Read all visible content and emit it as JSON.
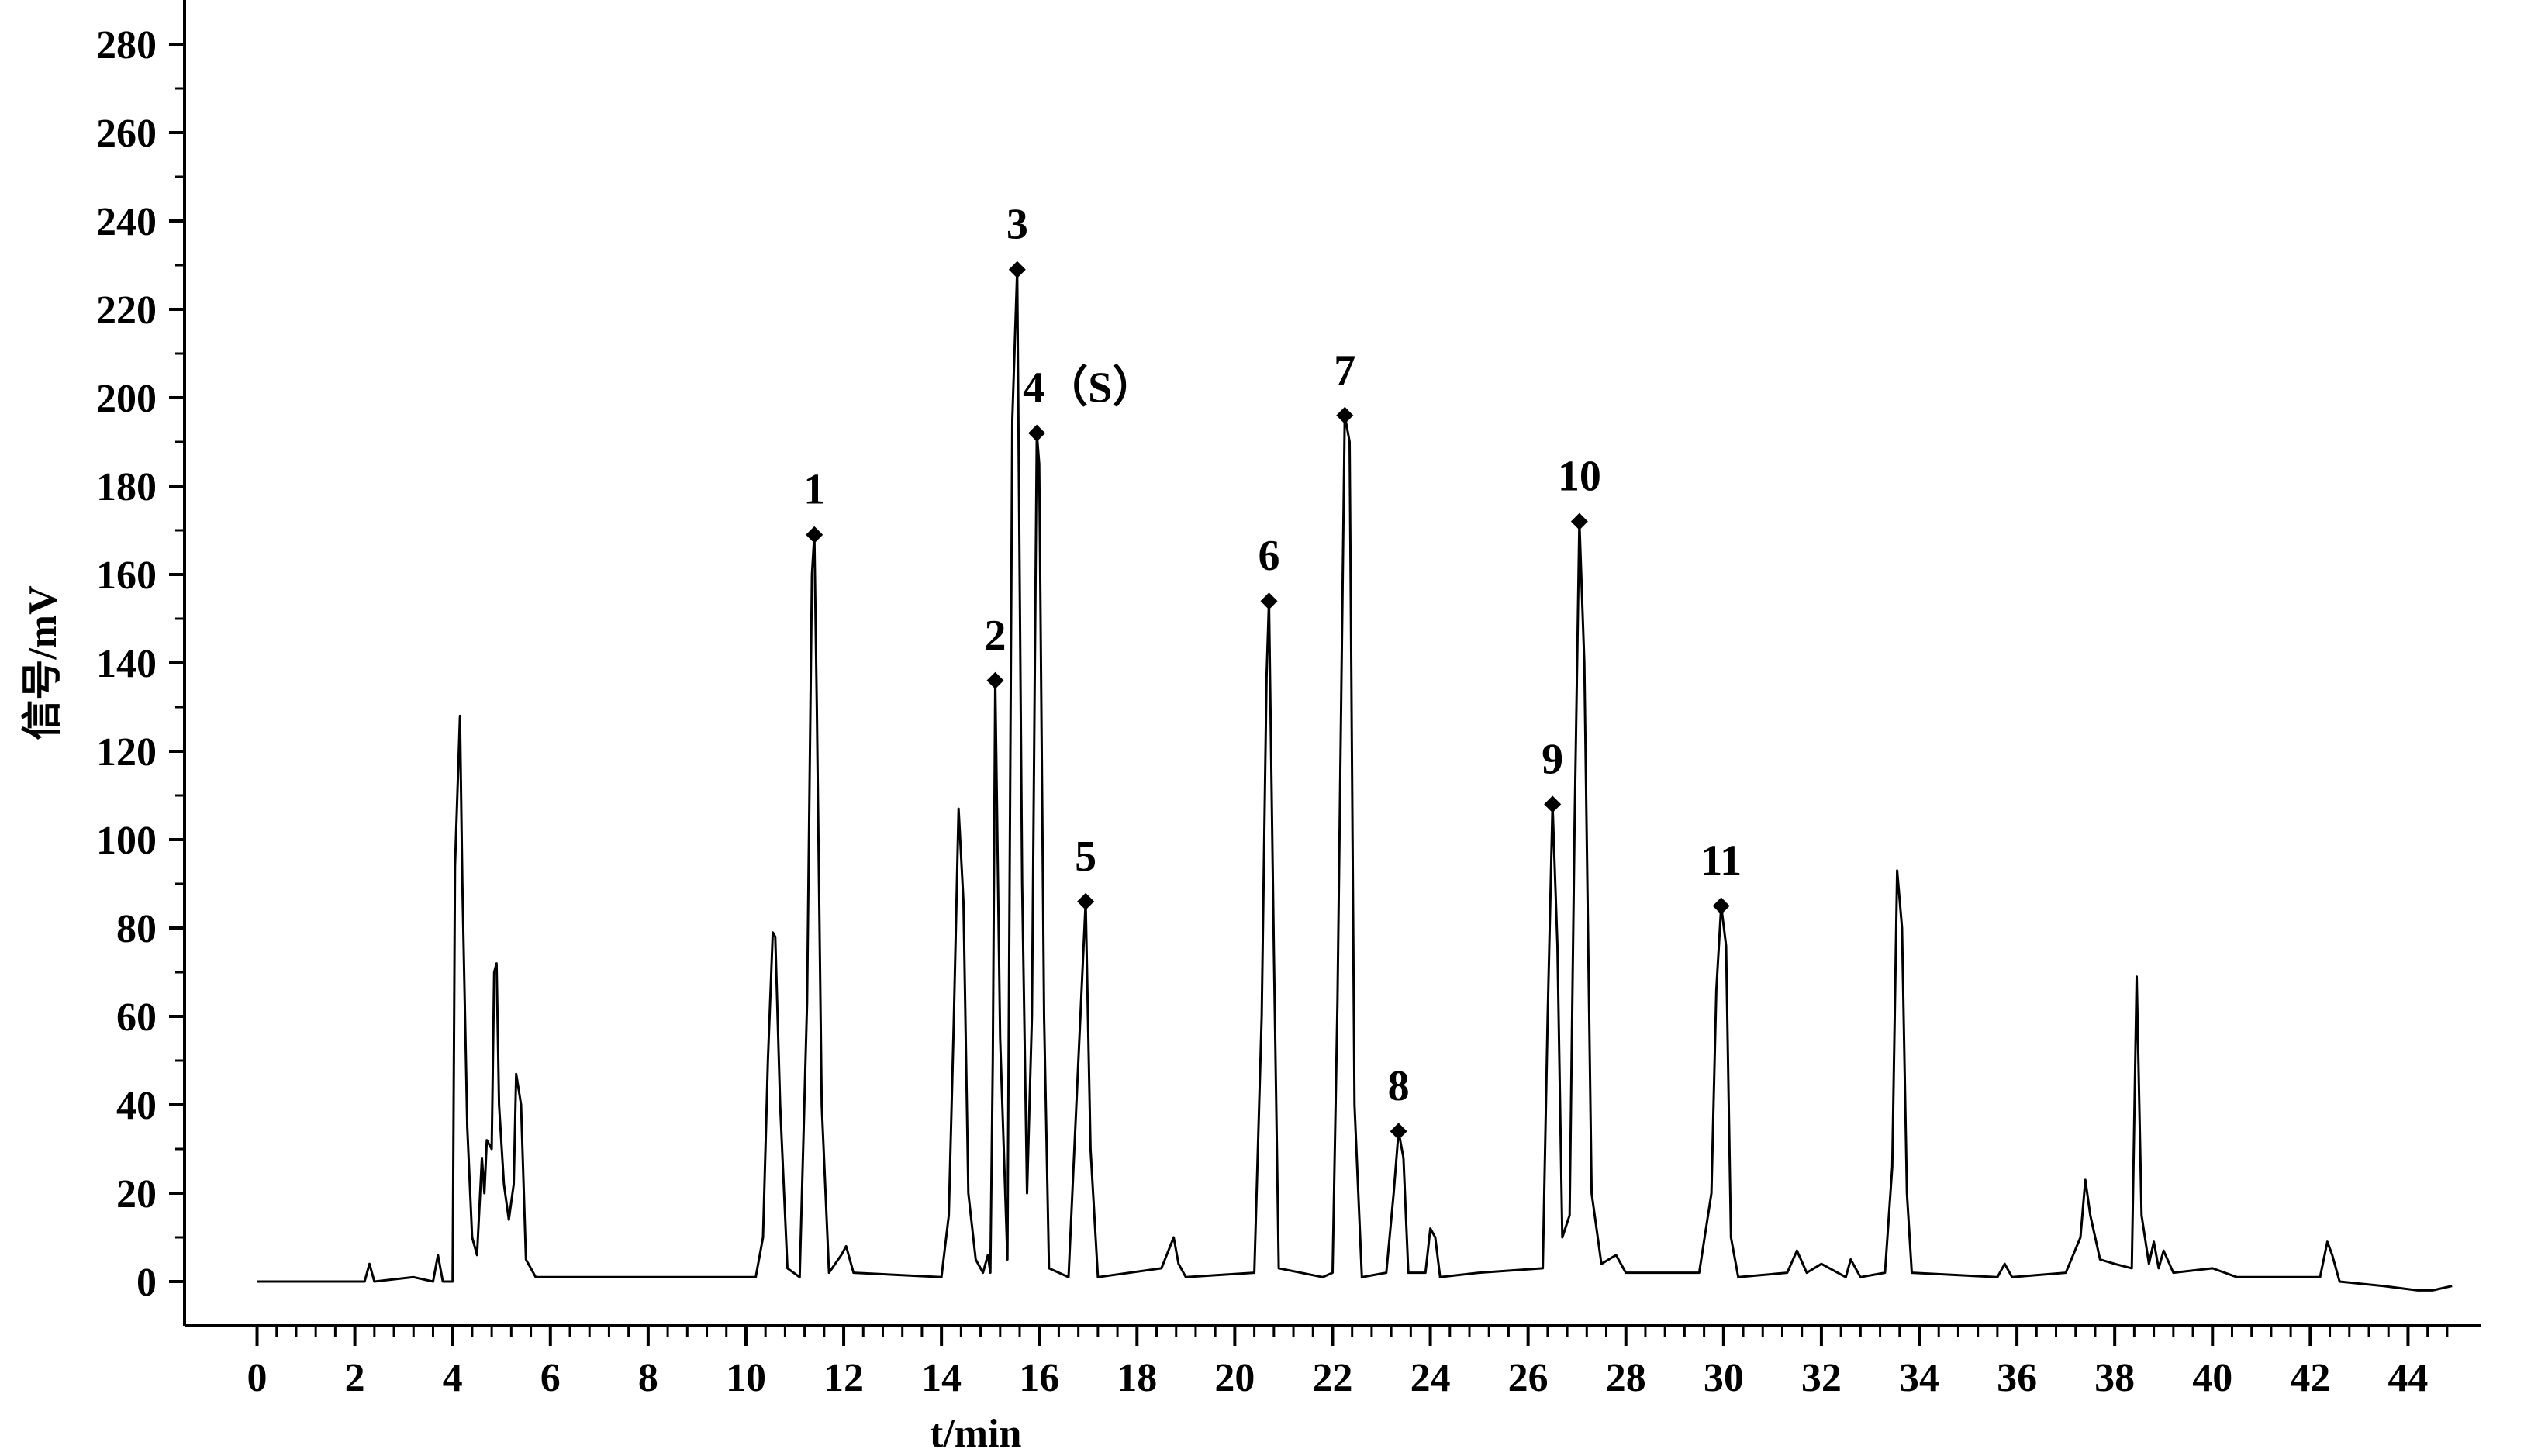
{
  "chart_data": {
    "type": "line",
    "title": "",
    "xlabel": "t/min",
    "ylabel": "信号/mV",
    "xlim": [
      -0.5,
      45.5
    ],
    "ylim": [
      -10,
      290
    ],
    "x_ticks": [
      0,
      2,
      4,
      6,
      8,
      10,
      12,
      14,
      16,
      18,
      20,
      22,
      24,
      26,
      28,
      30,
      32,
      34,
      36,
      38,
      40,
      42,
      44
    ],
    "y_ticks": [
      0,
      20,
      40,
      60,
      80,
      100,
      120,
      140,
      160,
      180,
      200,
      220,
      240,
      260,
      280
    ],
    "grid": false,
    "legend": "none",
    "peaks": [
      {
        "label": "1",
        "x": 11.4,
        "y": 169
      },
      {
        "label": "2",
        "x": 15.1,
        "y": 136
      },
      {
        "label": "3",
        "x": 15.55,
        "y": 229
      },
      {
        "label": "4（S）",
        "x": 15.95,
        "y": 192
      },
      {
        "label": "5",
        "x": 16.95,
        "y": 86
      },
      {
        "label": "6",
        "x": 20.7,
        "y": 154
      },
      {
        "label": "7",
        "x": 22.25,
        "y": 196
      },
      {
        "label": "8",
        "x": 23.35,
        "y": 34
      },
      {
        "label": "9",
        "x": 26.5,
        "y": 108
      },
      {
        "label": "10",
        "x": 27.05,
        "y": 172
      },
      {
        "label": "11",
        "x": 29.95,
        "y": 85
      }
    ],
    "series": [
      {
        "color": "#000000",
        "points": [
          [
            0.0,
            0
          ],
          [
            2.2,
            0
          ],
          [
            2.3,
            4
          ],
          [
            2.4,
            0
          ],
          [
            3.2,
            1
          ],
          [
            3.6,
            0
          ],
          [
            3.7,
            6
          ],
          [
            3.8,
            0
          ],
          [
            4.0,
            0
          ],
          [
            4.05,
            94
          ],
          [
            4.15,
            128
          ],
          [
            4.2,
            90
          ],
          [
            4.3,
            35
          ],
          [
            4.4,
            10
          ],
          [
            4.5,
            6
          ],
          [
            4.6,
            28
          ],
          [
            4.65,
            20
          ],
          [
            4.7,
            32
          ],
          [
            4.8,
            30
          ],
          [
            4.85,
            70
          ],
          [
            4.9,
            72
          ],
          [
            4.95,
            40
          ],
          [
            5.05,
            22
          ],
          [
            5.15,
            14
          ],
          [
            5.25,
            22
          ],
          [
            5.3,
            47
          ],
          [
            5.4,
            40
          ],
          [
            5.5,
            5
          ],
          [
            5.7,
            1
          ],
          [
            7.2,
            1
          ],
          [
            7.3,
            1
          ],
          [
            10.2,
            1
          ],
          [
            10.35,
            10
          ],
          [
            10.45,
            50
          ],
          [
            10.55,
            79
          ],
          [
            10.6,
            78
          ],
          [
            10.7,
            40
          ],
          [
            10.85,
            3
          ],
          [
            11.1,
            1
          ],
          [
            11.25,
            63
          ],
          [
            11.35,
            160
          ],
          [
            11.4,
            169
          ],
          [
            11.45,
            130
          ],
          [
            11.55,
            40
          ],
          [
            11.7,
            2
          ],
          [
            11.95,
            6
          ],
          [
            12.05,
            8
          ],
          [
            12.2,
            2
          ],
          [
            14.0,
            1
          ],
          [
            14.15,
            15
          ],
          [
            14.25,
            58
          ],
          [
            14.35,
            107
          ],
          [
            14.45,
            86
          ],
          [
            14.55,
            20
          ],
          [
            14.7,
            5
          ],
          [
            14.85,
            2
          ],
          [
            14.95,
            6
          ],
          [
            15.0,
            2
          ],
          [
            15.05,
            50
          ],
          [
            15.1,
            136
          ],
          [
            15.2,
            55
          ],
          [
            15.35,
            5
          ],
          [
            15.45,
            195
          ],
          [
            15.55,
            229
          ],
          [
            15.65,
            90
          ],
          [
            15.75,
            20
          ],
          [
            15.85,
            60
          ],
          [
            15.95,
            192
          ],
          [
            16.0,
            185
          ],
          [
            16.1,
            60
          ],
          [
            16.2,
            3
          ],
          [
            16.6,
            1
          ],
          [
            16.8,
            50
          ],
          [
            16.95,
            86
          ],
          [
            17.05,
            30
          ],
          [
            17.2,
            1
          ],
          [
            18.5,
            3
          ],
          [
            18.75,
            10
          ],
          [
            18.85,
            4
          ],
          [
            19.0,
            1
          ],
          [
            20.4,
            2
          ],
          [
            20.55,
            60
          ],
          [
            20.65,
            137
          ],
          [
            20.7,
            154
          ],
          [
            20.8,
            75
          ],
          [
            20.9,
            3
          ],
          [
            21.8,
            1
          ],
          [
            22.0,
            2
          ],
          [
            22.1,
            63
          ],
          [
            22.25,
            196
          ],
          [
            22.35,
            190
          ],
          [
            22.45,
            40
          ],
          [
            22.6,
            1
          ],
          [
            23.1,
            2
          ],
          [
            23.25,
            20
          ],
          [
            23.35,
            34
          ],
          [
            23.45,
            28
          ],
          [
            23.55,
            2
          ],
          [
            23.9,
            2
          ],
          [
            24.0,
            12
          ],
          [
            24.1,
            10
          ],
          [
            24.2,
            1
          ],
          [
            25.0,
            2
          ],
          [
            26.3,
            3
          ],
          [
            26.4,
            60
          ],
          [
            26.5,
            108
          ],
          [
            26.6,
            76
          ],
          [
            26.7,
            10
          ],
          [
            26.85,
            15
          ],
          [
            26.95,
            102
          ],
          [
            27.05,
            172
          ],
          [
            27.15,
            140
          ],
          [
            27.3,
            20
          ],
          [
            27.5,
            4
          ],
          [
            27.8,
            6
          ],
          [
            28.0,
            2
          ],
          [
            29.5,
            2
          ],
          [
            29.75,
            20
          ],
          [
            29.85,
            66
          ],
          [
            29.95,
            85
          ],
          [
            30.05,
            76
          ],
          [
            30.15,
            10
          ],
          [
            30.3,
            1
          ],
          [
            31.3,
            2
          ],
          [
            31.5,
            7
          ],
          [
            31.7,
            2
          ],
          [
            32.0,
            4
          ],
          [
            32.5,
            1
          ],
          [
            32.6,
            5
          ],
          [
            32.8,
            1
          ],
          [
            33.3,
            2
          ],
          [
            33.45,
            26
          ],
          [
            33.55,
            93
          ],
          [
            33.65,
            80
          ],
          [
            33.75,
            20
          ],
          [
            33.85,
            2
          ],
          [
            35.6,
            1
          ],
          [
            35.75,
            4
          ],
          [
            35.9,
            1
          ],
          [
            37.0,
            2
          ],
          [
            37.3,
            10
          ],
          [
            37.4,
            23
          ],
          [
            37.5,
            15
          ],
          [
            37.7,
            5
          ],
          [
            38.0,
            4
          ],
          [
            38.35,
            3
          ],
          [
            38.45,
            69
          ],
          [
            38.55,
            15
          ],
          [
            38.7,
            4
          ],
          [
            38.8,
            9
          ],
          [
            38.9,
            3
          ],
          [
            39.0,
            7
          ],
          [
            39.2,
            2
          ],
          [
            40.0,
            3
          ],
          [
            40.5,
            1
          ],
          [
            42.2,
            1
          ],
          [
            42.35,
            9
          ],
          [
            42.45,
            6
          ],
          [
            42.6,
            0
          ],
          [
            43.5,
            -1
          ],
          [
            44.2,
            -2
          ],
          [
            44.5,
            -2
          ],
          [
            44.9,
            -1
          ]
        ]
      }
    ]
  }
}
